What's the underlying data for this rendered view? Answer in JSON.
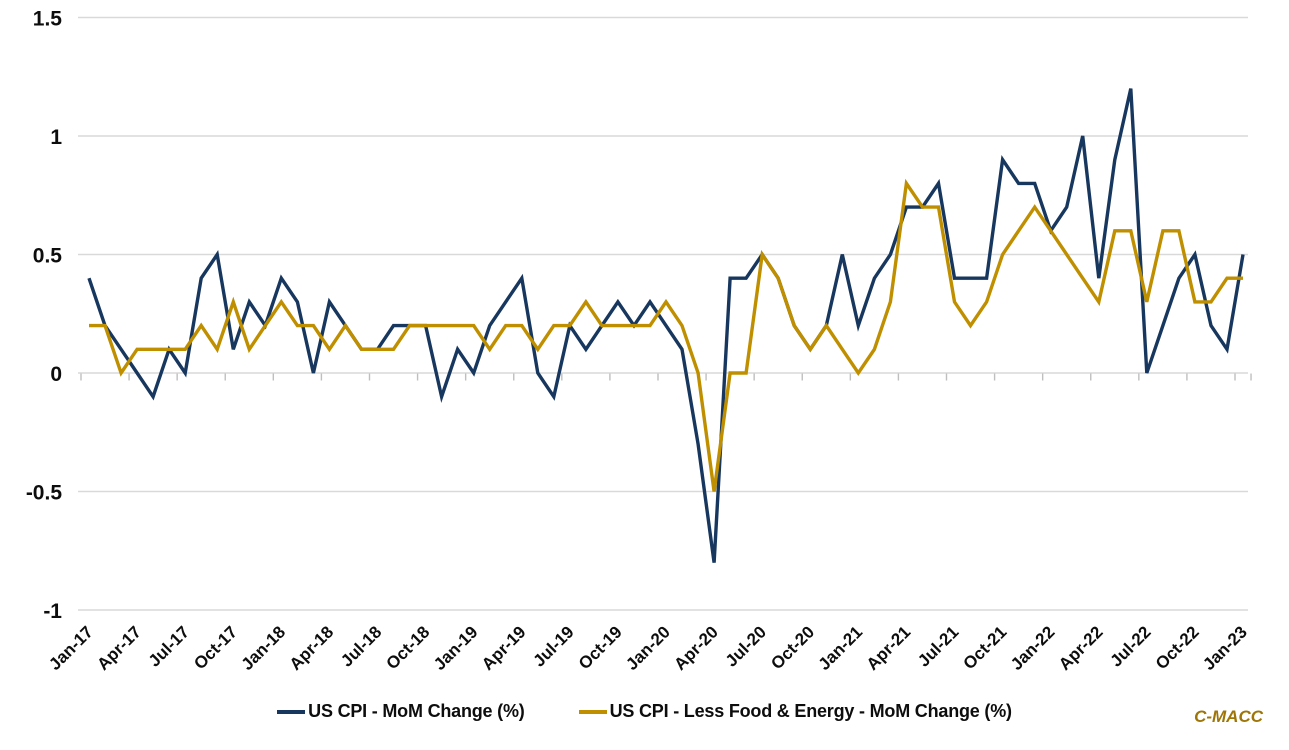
{
  "chart": {
    "watermark": "C-MACC",
    "background_color": "#ffffff",
    "gridline_color": "#d9d9d9",
    "tick_color": "#bfbfbf",
    "text_color": "#0d0d0d",
    "y_axis": {
      "tick_labels": [
        "1.5",
        "1",
        "0.5",
        "0",
        "-0.5",
        "-1"
      ],
      "tick_values": [
        1.5,
        1,
        0.5,
        0,
        -0.5,
        -1
      ]
    },
    "x_axis": {
      "tick_labels": [
        "Jan-17",
        "Apr-17",
        "Jul-17",
        "Oct-17",
        "Jan-18",
        "Apr-18",
        "Jul-18",
        "Oct-18",
        "Jan-19",
        "Apr-19",
        "Jul-19",
        "Oct-19",
        "Jan-20",
        "Apr-20",
        "Jul-20",
        "Oct-20",
        "Jan-21",
        "Apr-21",
        "Jul-21",
        "Oct-21",
        "Jan-22",
        "Apr-22",
        "Jul-22",
        "Oct-22",
        "Jan-23"
      ],
      "label_step_months": 3
    }
  },
  "chart_data": {
    "type": "line",
    "x": [
      "Jan-17",
      "Feb-17",
      "Mar-17",
      "Apr-17",
      "May-17",
      "Jun-17",
      "Jul-17",
      "Aug-17",
      "Sep-17",
      "Oct-17",
      "Nov-17",
      "Dec-17",
      "Jan-18",
      "Feb-18",
      "Mar-18",
      "Apr-18",
      "May-18",
      "Jun-18",
      "Jul-18",
      "Aug-18",
      "Sep-18",
      "Oct-18",
      "Nov-18",
      "Dec-18",
      "Jan-19",
      "Feb-19",
      "Mar-19",
      "Apr-19",
      "May-19",
      "Jun-19",
      "Jul-19",
      "Aug-19",
      "Sep-19",
      "Oct-19",
      "Nov-19",
      "Dec-19",
      "Jan-20",
      "Feb-20",
      "Mar-20",
      "Apr-20",
      "May-20",
      "Jun-20",
      "Jul-20",
      "Aug-20",
      "Sep-20",
      "Oct-20",
      "Nov-20",
      "Dec-20",
      "Jan-21",
      "Feb-21",
      "Mar-21",
      "Apr-21",
      "May-21",
      "Jun-21",
      "Jul-21",
      "Aug-21",
      "Sep-21",
      "Oct-21",
      "Nov-21",
      "Dec-21",
      "Jan-22",
      "Feb-22",
      "Mar-22",
      "Apr-22",
      "May-22",
      "Jun-22",
      "Jul-22",
      "Aug-22",
      "Sep-22",
      "Oct-22",
      "Nov-22",
      "Dec-22",
      "Jan-23"
    ],
    "series": [
      {
        "name": "US CPI - MoM Change (%)",
        "color": "#17375e",
        "values": [
          0.4,
          0.2,
          0.1,
          0.0,
          -0.1,
          0.1,
          0.0,
          0.4,
          0.5,
          0.1,
          0.3,
          0.2,
          0.4,
          0.3,
          0.0,
          0.3,
          0.2,
          0.1,
          0.1,
          0.2,
          0.2,
          0.2,
          -0.1,
          0.1,
          0.0,
          0.2,
          0.3,
          0.4,
          0.0,
          -0.1,
          0.2,
          0.1,
          0.2,
          0.3,
          0.2,
          0.3,
          0.2,
          0.1,
          -0.3,
          -0.8,
          0.4,
          0.4,
          0.5,
          0.4,
          0.2,
          0.1,
          0.2,
          0.5,
          0.2,
          0.4,
          0.5,
          0.7,
          0.7,
          0.8,
          0.4,
          0.4,
          0.4,
          0.9,
          0.8,
          0.8,
          0.6,
          0.7,
          1.0,
          0.4,
          0.9,
          1.2,
          0.0,
          0.2,
          0.4,
          0.5,
          0.2,
          0.1,
          0.5
        ]
      },
      {
        "name": "US CPI - Less Food & Energy - MoM Change (%)",
        "color": "#bf8f00",
        "values": [
          0.2,
          0.2,
          0.0,
          0.1,
          0.1,
          0.1,
          0.1,
          0.2,
          0.1,
          0.3,
          0.1,
          0.2,
          0.3,
          0.2,
          0.2,
          0.1,
          0.2,
          0.1,
          0.1,
          0.1,
          0.2,
          0.2,
          0.2,
          0.2,
          0.2,
          0.1,
          0.2,
          0.2,
          0.1,
          0.2,
          0.2,
          0.3,
          0.2,
          0.2,
          0.2,
          0.2,
          0.3,
          0.2,
          0.0,
          -0.5,
          0.0,
          0.0,
          0.5,
          0.4,
          0.2,
          0.1,
          0.2,
          0.1,
          0.0,
          0.1,
          0.3,
          0.8,
          0.7,
          0.7,
          0.3,
          0.2,
          0.3,
          0.5,
          0.6,
          0.7,
          0.6,
          0.5,
          0.4,
          0.3,
          0.6,
          0.6,
          0.3,
          0.6,
          0.6,
          0.3,
          0.3,
          0.4,
          0.4
        ]
      }
    ],
    "ylim": [
      -1,
      1.5
    ],
    "xlabel": "",
    "ylabel": "",
    "grid": true,
    "legend_position": "bottom"
  }
}
